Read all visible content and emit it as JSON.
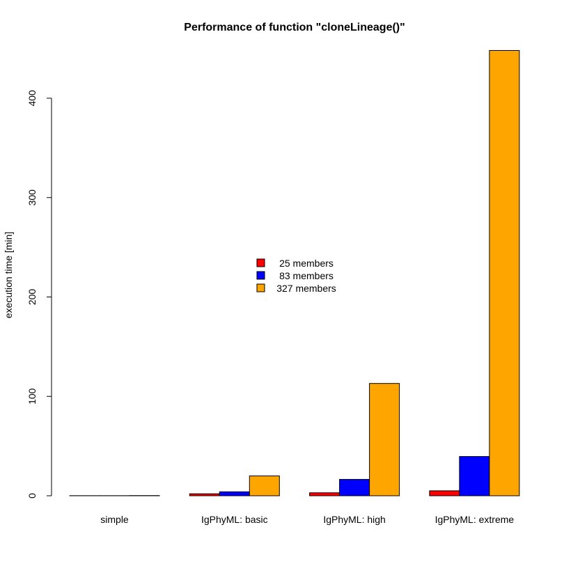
{
  "chart_data": {
    "type": "bar",
    "title": "Performance of function \"cloneLineage()\"",
    "xlabel": "",
    "ylabel": "execution time [min]",
    "categories": [
      "simple",
      "IgPhyML: basic",
      "IgPhyML: high",
      "IgPhyML: extreme"
    ],
    "series": [
      {
        "name": "25 members",
        "color": "#ff0000",
        "values": [
          0.1,
          2,
          3,
          5
        ]
      },
      {
        "name": "83 members",
        "color": "#0000ff",
        "values": [
          0.1,
          4,
          16.5,
          39.5
        ]
      },
      {
        "name": "327 members",
        "color": "#ffa500",
        "values": [
          0.2,
          20,
          113,
          448
        ]
      }
    ],
    "yticks": [
      0,
      100,
      200,
      300,
      400
    ],
    "ylim": [
      0,
      448
    ],
    "grid": false,
    "legend_position": "center",
    "bar_stroke": "#000000"
  }
}
